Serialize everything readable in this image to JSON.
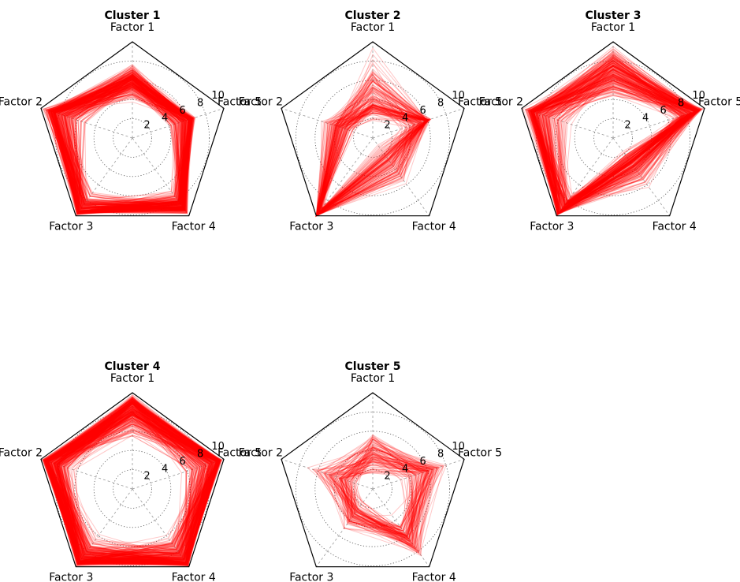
{
  "chart_data": [
    {
      "type": "radar",
      "title": "Cluster 1",
      "axes": [
        "Factor 1",
        "Factor 5",
        "Factor 4",
        "Factor 3",
        "Factor 2"
      ],
      "range": [
        0,
        10
      ],
      "ticks": [
        "2",
        "4",
        "6",
        "8",
        "10"
      ],
      "line_color": "#ff0000",
      "profile_count": 300,
      "typical_profile": [
        6.0,
        6.2,
        8.8,
        9.4,
        8.4
      ],
      "profile_min": [
        3.5,
        3.5,
        6.5,
        6.5,
        4.0
      ],
      "profile_max": [
        8.0,
        7.0,
        10.0,
        10.0,
        10.0
      ]
    },
    {
      "type": "radar",
      "title": "Cluster 2",
      "axes": [
        "Factor 1",
        "Factor 5",
        "Factor 4",
        "Factor 3",
        "Factor 2"
      ],
      "range": [
        0,
        10
      ],
      "ticks": [
        "2",
        "4",
        "6",
        "8",
        "10"
      ],
      "line_color": "#ff0000",
      "profile_count": 150,
      "typical_profile": [
        3.5,
        5.8,
        2.8,
        10.0,
        3.6
      ],
      "profile_min": [
        1.5,
        2.0,
        0.5,
        8.0,
        1.5
      ],
      "profile_max": [
        10.0,
        6.5,
        7.0,
        10.0,
        6.0
      ]
    },
    {
      "type": "radar",
      "title": "Cluster 3",
      "axes": [
        "Factor 1",
        "Factor 5",
        "Factor 4",
        "Factor 3",
        "Factor 2"
      ],
      "range": [
        0,
        10
      ],
      "ticks": [
        "2",
        "4",
        "6",
        "8",
        "10"
      ],
      "line_color": "#ff0000",
      "profile_count": 250,
      "typical_profile": [
        7.0,
        9.0,
        3.3,
        9.6,
        8.6
      ],
      "profile_min": [
        3.0,
        6.0,
        1.5,
        6.5,
        4.0
      ],
      "profile_max": [
        10.0,
        10.0,
        6.5,
        10.0,
        10.0
      ]
    },
    {
      "type": "radar",
      "title": "Cluster 4",
      "axes": [
        "Factor 1",
        "Factor 5",
        "Factor 4",
        "Factor 3",
        "Factor 2"
      ],
      "range": [
        0,
        10
      ],
      "ticks": [
        "2",
        "4",
        "6",
        "8",
        "10"
      ],
      "line_color": "#ff0000",
      "profile_count": 350,
      "typical_profile": [
        8.8,
        9.2,
        9.4,
        9.2,
        9.2
      ],
      "profile_min": [
        5.0,
        5.0,
        5.5,
        5.5,
        5.5
      ],
      "profile_max": [
        10.0,
        10.0,
        10.0,
        10.0,
        10.0
      ]
    },
    {
      "type": "radar",
      "title": "Cluster 5",
      "axes": [
        "Factor 1",
        "Factor 5",
        "Factor 4",
        "Factor 3",
        "Factor 2"
      ],
      "range": [
        0,
        10
      ],
      "ticks": [
        "2",
        "4",
        "6",
        "8",
        "10"
      ],
      "line_color": "#ff0000",
      "profile_count": 110,
      "typical_profile": [
        3.6,
        6.0,
        6.5,
        3.3,
        3.6
      ],
      "profile_min": [
        1.0,
        2.0,
        3.0,
        1.0,
        1.0
      ],
      "profile_max": [
        6.5,
        8.5,
        9.8,
        6.0,
        8.5
      ]
    }
  ],
  "layout": {
    "grid": "2x3",
    "background": "#ffffff",
    "frame_color": "#000000",
    "gridline_color": "#555555"
  }
}
